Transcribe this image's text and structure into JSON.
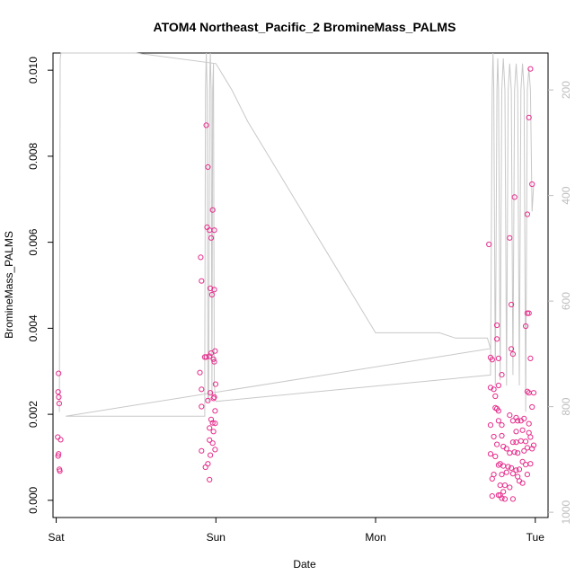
{
  "chart_data": {
    "type": "scatter",
    "title": "ATOM4 Northeast_Pacific_2 BromineMass_PALMS",
    "xlabel": "Date",
    "ylabel": "BromineMass_PALMS",
    "x_ticks": [
      "Sat",
      "Sun",
      "Mon",
      "Tue"
    ],
    "y_ticks": [
      "0.000",
      "0.002",
      "0.004",
      "0.006",
      "0.008",
      "0.010"
    ],
    "y2_ticks": [
      "200",
      "400",
      "600",
      "800",
      "1000"
    ],
    "x_unit": "days",
    "xlim": [
      -0.02,
      3.08
    ],
    "ylim": [
      -0.0004,
      0.0104
    ],
    "y2lim": [
      1010,
      130
    ],
    "grid": false,
    "colors": {
      "points": "#e62e8c",
      "line": "#c8c8c8",
      "right_axis": "#bdbdbd",
      "axes": "#000000"
    },
    "altitude_series": [
      [
        0.02,
        810
      ],
      [
        0.025,
        140
      ],
      [
        0.03,
        100
      ],
      [
        0.5,
        100
      ],
      [
        1.0,
        150
      ],
      [
        1.1,
        200
      ],
      [
        1.2,
        260
      ],
      [
        1.4,
        360
      ],
      [
        1.6,
        460
      ],
      [
        1.8,
        560
      ],
      [
        2.0,
        660
      ],
      [
        2.4,
        660
      ],
      [
        2.5,
        670
      ],
      [
        2.7,
        670
      ],
      [
        2.72,
        690
      ],
      [
        0.06,
        818
      ],
      [
        0.5,
        818
      ],
      [
        0.9,
        818
      ],
      [
        0.93,
        818
      ],
      [
        0.93,
        740
      ],
      [
        0.935,
        200
      ],
      [
        0.94,
        120
      ],
      [
        0.945,
        200
      ],
      [
        0.95,
        780
      ],
      [
        0.955,
        790
      ],
      [
        0.96,
        200
      ],
      [
        0.965,
        120
      ],
      [
        0.97,
        200
      ],
      [
        0.975,
        780
      ],
      [
        0.98,
        200
      ],
      [
        0.985,
        150
      ],
      [
        0.99,
        760
      ],
      [
        1.0,
        790
      ],
      [
        2.72,
        740
      ],
      [
        2.73,
        200
      ],
      [
        2.735,
        120
      ],
      [
        2.74,
        200
      ],
      [
        2.75,
        760
      ],
      [
        2.76,
        200
      ],
      [
        2.765,
        140
      ],
      [
        2.77,
        200
      ],
      [
        2.78,
        750
      ],
      [
        2.79,
        200
      ],
      [
        2.8,
        140
      ],
      [
        2.81,
        200
      ],
      [
        2.82,
        760
      ],
      [
        2.83,
        200
      ],
      [
        2.84,
        150
      ],
      [
        2.85,
        200
      ],
      [
        2.86,
        740
      ],
      [
        2.87,
        200
      ],
      [
        2.88,
        150
      ],
      [
        2.89,
        200
      ],
      [
        2.9,
        760
      ],
      [
        2.91,
        200
      ],
      [
        2.92,
        150
      ],
      [
        2.93,
        200
      ],
      [
        2.94,
        810
      ],
      [
        2.95,
        200
      ],
      [
        2.96,
        160
      ],
      [
        2.97,
        200
      ],
      [
        2.98,
        430
      ],
      [
        2.99,
        380
      ]
    ],
    "series": [
      {
        "values": [
          [
            0.015,
            0.00295
          ],
          [
            0.012,
            0.00252
          ],
          [
            0.016,
            0.0024
          ],
          [
            0.019,
            0.00225
          ],
          [
            0.01,
            0.00147
          ],
          [
            0.028,
            0.00141
          ],
          [
            0.015,
            0.00108
          ],
          [
            0.012,
            0.00103
          ],
          [
            0.02,
            0.00072
          ],
          [
            0.023,
            0.00068
          ],
          [
            0.94,
            0.00872
          ],
          [
            0.95,
            0.00775
          ],
          [
            0.98,
            0.00675
          ],
          [
            0.945,
            0.00635
          ],
          [
            0.96,
            0.00628
          ],
          [
            0.99,
            0.00628
          ],
          [
            0.97,
            0.0061
          ],
          [
            0.905,
            0.00565
          ],
          [
            0.91,
            0.0051
          ],
          [
            0.965,
            0.00493
          ],
          [
            0.99,
            0.0049
          ],
          [
            0.975,
            0.00478
          ],
          [
            0.995,
            0.00347
          ],
          [
            0.97,
            0.00342
          ],
          [
            0.96,
            0.00335
          ],
          [
            0.93,
            0.00333
          ],
          [
            0.94,
            0.00333
          ],
          [
            0.985,
            0.00328
          ],
          [
            0.99,
            0.00322
          ],
          [
            0.9,
            0.00297
          ],
          [
            0.998,
            0.0027
          ],
          [
            0.91,
            0.00258
          ],
          [
            0.965,
            0.0025
          ],
          [
            0.95,
            0.00232
          ],
          [
            0.985,
            0.00237
          ],
          [
            0.99,
            0.0024
          ],
          [
            0.91,
            0.00218
          ],
          [
            0.995,
            0.00208
          ],
          [
            0.97,
            0.00188
          ],
          [
            0.98,
            0.0018
          ],
          [
            0.995,
            0.00179
          ],
          [
            0.96,
            0.00168
          ],
          [
            0.985,
            0.0016
          ],
          [
            0.96,
            0.0014
          ],
          [
            0.98,
            0.00133
          ],
          [
            0.91,
            0.00115
          ],
          [
            0.995,
            0.00118
          ],
          [
            0.965,
            0.00105
          ],
          [
            0.95,
            0.00085
          ],
          [
            0.935,
            0.00077
          ],
          [
            0.96,
            0.00048
          ],
          [
            2.71,
            0.00595
          ],
          [
            2.84,
            0.0061
          ],
          [
            2.87,
            0.00705
          ],
          [
            2.85,
            0.00455
          ],
          [
            2.76,
            0.00407
          ],
          [
            2.95,
            0.00435
          ],
          [
            2.96,
            0.00435
          ],
          [
            2.94,
            0.00405
          ],
          [
            2.95,
            0.00665
          ],
          [
            2.97,
            0.01003
          ],
          [
            2.96,
            0.0089
          ],
          [
            2.98,
            0.00735
          ],
          [
            2.72,
            0.00332
          ],
          [
            2.73,
            0.00327
          ],
          [
            2.76,
            0.00375
          ],
          [
            2.77,
            0.0033
          ],
          [
            2.79,
            0.00292
          ],
          [
            2.85,
            0.00352
          ],
          [
            2.86,
            0.0034
          ],
          [
            2.97,
            0.0033
          ],
          [
            2.72,
            0.00262
          ],
          [
            2.74,
            0.00258
          ],
          [
            2.75,
            0.00242
          ],
          [
            2.77,
            0.00267
          ],
          [
            2.95,
            0.00253
          ],
          [
            2.96,
            0.0025
          ],
          [
            2.99,
            0.0025
          ],
          [
            2.75,
            0.00215
          ],
          [
            2.77,
            0.00208
          ],
          [
            2.76,
            0.00213
          ],
          [
            2.98,
            0.00217
          ],
          [
            2.72,
            0.00175
          ],
          [
            2.79,
            0.00175
          ],
          [
            2.84,
            0.00198
          ],
          [
            2.86,
            0.00185
          ],
          [
            2.88,
            0.00192
          ],
          [
            2.89,
            0.00185
          ],
          [
            2.91,
            0.00185
          ],
          [
            2.93,
            0.0019
          ],
          [
            2.96,
            0.00178
          ],
          [
            2.77,
            0.00185
          ],
          [
            2.88,
            0.0016
          ],
          [
            2.92,
            0.00163
          ],
          [
            2.96,
            0.00157
          ],
          [
            2.74,
            0.00148
          ],
          [
            2.79,
            0.0015
          ],
          [
            2.86,
            0.00135
          ],
          [
            2.88,
            0.00135
          ],
          [
            2.91,
            0.00138
          ],
          [
            2.94,
            0.00137
          ],
          [
            2.97,
            0.00147
          ],
          [
            2.99,
            0.00128
          ],
          [
            2.76,
            0.0013
          ],
          [
            2.8,
            0.00125
          ],
          [
            2.82,
            0.0012
          ],
          [
            2.84,
            0.0011
          ],
          [
            2.87,
            0.00112
          ],
          [
            2.89,
            0.0011
          ],
          [
            2.93,
            0.00115
          ],
          [
            2.95,
            0.00122
          ],
          [
            2.98,
            0.0012
          ],
          [
            2.72,
            0.00108
          ],
          [
            2.75,
            0.00102
          ],
          [
            2.78,
            0.00085
          ],
          [
            2.8,
            0.0008
          ],
          [
            2.83,
            0.00078
          ],
          [
            2.85,
            0.00075
          ],
          [
            2.88,
            0.0007
          ],
          [
            2.9,
            0.00072
          ],
          [
            2.92,
            0.0009
          ],
          [
            2.94,
            0.00083
          ],
          [
            2.97,
            0.00085
          ],
          [
            2.74,
            0.0006
          ],
          [
            2.77,
            0.00082
          ],
          [
            2.79,
            0.0006
          ],
          [
            2.82,
            0.00065
          ],
          [
            2.86,
            0.00062
          ],
          [
            2.89,
            0.00055
          ],
          [
            2.92,
            0.0004
          ],
          [
            2.95,
            0.0006
          ],
          [
            2.73,
            0.0005
          ],
          [
            2.78,
            0.00035
          ],
          [
            2.81,
            0.00035
          ],
          [
            2.84,
            0.0003
          ],
          [
            2.9,
            0.00045
          ],
          [
            2.73,
            0.0001
          ],
          [
            2.78,
            0.00012
          ],
          [
            2.79,
            5e-05
          ],
          [
            2.81,
            3e-05
          ],
          [
            2.86,
            3e-05
          ],
          [
            2.77,
            0.00012
          ],
          [
            2.8,
            0.0002
          ]
        ]
      }
    ]
  }
}
